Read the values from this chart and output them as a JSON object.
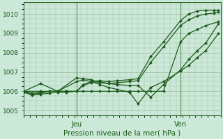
{
  "bg_color": "#cce8d8",
  "line_color": "#1a5c1a",
  "grid_color": "#99bb99",
  "xlabel": "Pression niveau de la mer( hPa )",
  "ylim": [
    1004.75,
    1010.6
  ],
  "xlim": [
    0,
    46
  ],
  "yticks": [
    1005,
    1006,
    1007,
    1008,
    1009,
    1010
  ],
  "xtick_positions": [
    12.5,
    37
  ],
  "xtick_labels": [
    "Jeu",
    "Ven"
  ],
  "vlines": [
    12.5,
    37
  ],
  "series": [
    {
      "x": [
        0,
        2,
        4,
        6,
        8,
        10,
        12.5,
        14,
        16,
        18,
        20,
        22,
        25,
        27,
        30,
        33,
        37,
        39,
        41,
        43,
        45,
        46
      ],
      "y": [
        1006.0,
        1005.85,
        1005.9,
        1006.0,
        1006.0,
        1006.0,
        1006.0,
        1006.35,
        1006.5,
        1006.55,
        1006.5,
        1006.55,
        1006.6,
        1006.65,
        1007.8,
        1008.55,
        1009.65,
        1010.0,
        1010.15,
        1010.2,
        1010.2,
        1010.2
      ]
    },
    {
      "x": [
        0,
        2,
        4,
        6,
        8,
        10,
        12.5,
        14,
        16,
        18,
        20,
        22,
        25,
        27,
        30,
        33,
        37,
        39,
        41,
        43,
        45,
        46
      ],
      "y": [
        1006.0,
        1005.9,
        1005.95,
        1006.0,
        1006.0,
        1006.0,
        1006.0,
        1006.3,
        1006.45,
        1006.5,
        1006.4,
        1006.45,
        1006.5,
        1006.55,
        1007.5,
        1008.3,
        1009.4,
        1009.7,
        1009.9,
        1010.0,
        1010.05,
        1010.1
      ]
    },
    {
      "x": [
        0,
        4,
        8,
        12.5,
        14,
        16,
        18,
        22,
        25,
        27,
        30,
        33,
        37,
        39,
        41,
        43,
        46
      ],
      "y": [
        1006.0,
        1006.4,
        1006.0,
        1006.7,
        1006.65,
        1006.6,
        1006.45,
        1006.35,
        1006.3,
        1006.3,
        1005.7,
        1006.35,
        1007.1,
        1007.65,
        1008.1,
        1008.5,
        1009.5
      ]
    },
    {
      "x": [
        0,
        4,
        8,
        12.5,
        14,
        16,
        18,
        20,
        22,
        25,
        27,
        30,
        33,
        37,
        39,
        41,
        43,
        46
      ],
      "y": [
        1006.0,
        1006.0,
        1006.0,
        1006.5,
        1006.6,
        1006.5,
        1006.35,
        1006.2,
        1006.1,
        1005.95,
        1005.35,
        1006.2,
        1006.5,
        1007.05,
        1007.35,
        1007.75,
        1008.1,
        1009.0
      ]
    },
    {
      "x": [
        0,
        2,
        4,
        6,
        8,
        10,
        12.5,
        14,
        16,
        18,
        20,
        22,
        25,
        27,
        30,
        33,
        37,
        39,
        41,
        43,
        46
      ],
      "y": [
        1005.95,
        1005.8,
        1005.85,
        1005.9,
        1005.95,
        1005.95,
        1006.0,
        1006.0,
        1006.0,
        1006.0,
        1006.0,
        1006.0,
        1006.0,
        1006.0,
        1006.0,
        1006.0,
        1008.55,
        1009.0,
        1009.2,
        1009.4,
        1009.6
      ]
    }
  ]
}
